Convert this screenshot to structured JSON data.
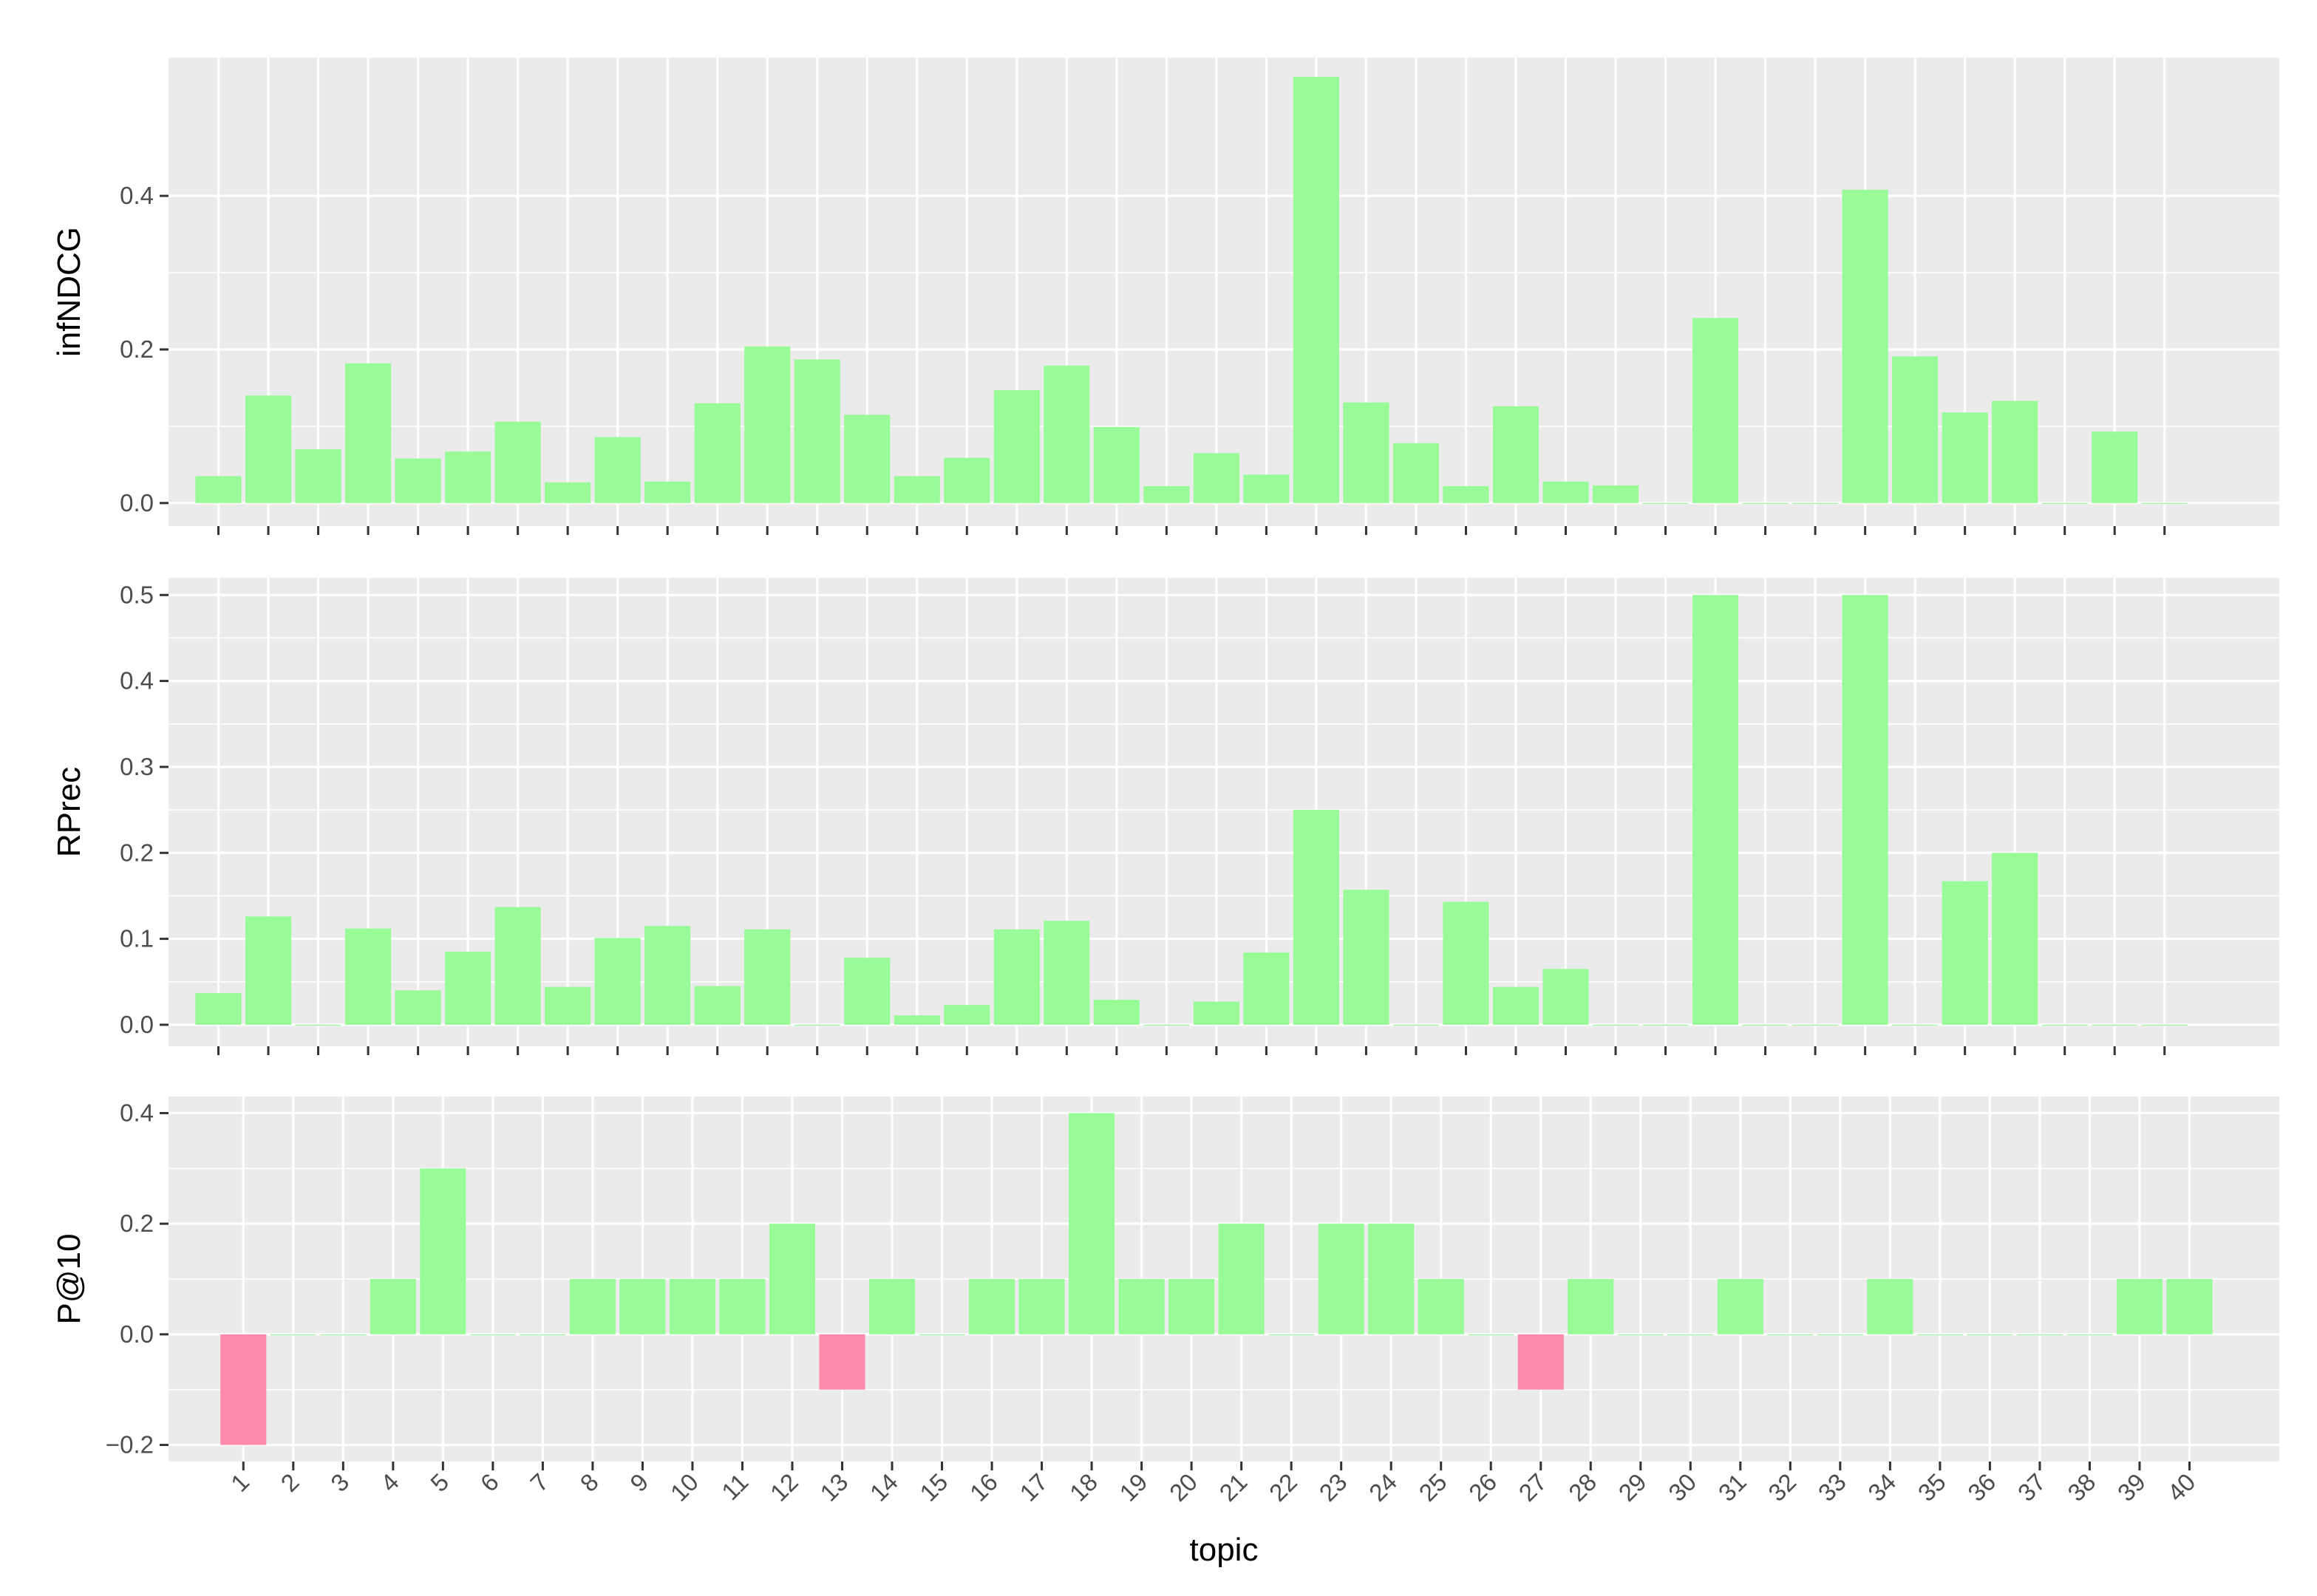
{
  "chart_data": [
    {
      "type": "bar",
      "ylabel": "infNDCG",
      "xlabel": "",
      "ylim": [
        -0.03,
        0.58
      ],
      "yticks": [
        0.0,
        0.2,
        0.4
      ],
      "ytick_labels": [
        "0.0",
        "0.2",
        "0.4"
      ],
      "x_offset": -0.5,
      "x": [
        1,
        2,
        3,
        4,
        5,
        6,
        7,
        8,
        9,
        10,
        11,
        12,
        13,
        14,
        15,
        16,
        17,
        18,
        19,
        20,
        21,
        22,
        23,
        24,
        25,
        26,
        27,
        28,
        29,
        30,
        31,
        32,
        33,
        34,
        35,
        36,
        37,
        38,
        39,
        40
      ],
      "values": [
        0.035,
        0.14,
        0.07,
        0.182,
        0.058,
        0.067,
        0.106,
        0.027,
        0.086,
        0.028,
        0.13,
        0.204,
        0.187,
        0.115,
        0.035,
        0.059,
        0.147,
        0.179,
        0.099,
        0.022,
        0.065,
        0.037,
        0.555,
        0.131,
        0.078,
        0.022,
        0.126,
        0.028,
        0.023,
        0,
        0.241,
        0,
        0,
        0.408,
        0.191,
        0.118,
        0.133,
        0,
        0.093,
        0
      ],
      "grid": true
    },
    {
      "type": "bar",
      "ylabel": "RPrec",
      "xlabel": "",
      "ylim": [
        -0.025,
        0.52
      ],
      "yticks": [
        0.0,
        0.1,
        0.2,
        0.3,
        0.4,
        0.5
      ],
      "ytick_labels": [
        "0.0",
        "0.1",
        "0.2",
        "0.3",
        "0.4",
        "0.5"
      ],
      "x_offset": -0.5,
      "x": [
        1,
        2,
        3,
        4,
        5,
        6,
        7,
        8,
        9,
        10,
        11,
        12,
        13,
        14,
        15,
        16,
        17,
        18,
        19,
        20,
        21,
        22,
        23,
        24,
        25,
        26,
        27,
        28,
        29,
        30,
        31,
        32,
        33,
        34,
        35,
        36,
        37,
        38,
        39,
        40
      ],
      "values": [
        0.037,
        0.126,
        0,
        0.112,
        0.04,
        0.085,
        0.137,
        0.044,
        0.101,
        0.115,
        0.045,
        0.111,
        0,
        0.078,
        0.011,
        0.023,
        0.111,
        0.121,
        0.029,
        0,
        0.027,
        0.084,
        0.25,
        0.157,
        0,
        0.143,
        0.044,
        0.065,
        0,
        0,
        0.5,
        0,
        0,
        0.5,
        0,
        0.167,
        0.2,
        0,
        0,
        0
      ],
      "grid": true
    },
    {
      "type": "bar",
      "ylabel": "P@10",
      "xlabel": "topic",
      "ylim": [
        -0.23,
        0.43
      ],
      "yticks": [
        -0.2,
        0.0,
        0.2,
        0.4
      ],
      "ytick_labels": [
        "−0.2",
        "0.0",
        "0.2",
        "0.4"
      ],
      "x_offset": 0,
      "categories": [
        "1",
        "2",
        "3",
        "4",
        "5",
        "6",
        "7",
        "8",
        "9",
        "10",
        "11",
        "12",
        "13",
        "14",
        "15",
        "16",
        "17",
        "18",
        "19",
        "20",
        "21",
        "22",
        "23",
        "24",
        "25",
        "26",
        "27",
        "28",
        "29",
        "30",
        "31",
        "32",
        "33",
        "34",
        "35",
        "36",
        "37",
        "38",
        "39",
        "40"
      ],
      "x": [
        1,
        2,
        3,
        4,
        5,
        6,
        7,
        8,
        9,
        10,
        11,
        12,
        13,
        14,
        15,
        16,
        17,
        18,
        19,
        20,
        21,
        22,
        23,
        24,
        25,
        26,
        27,
        28,
        29,
        30,
        31,
        32,
        33,
        34,
        35,
        36,
        37,
        38,
        39,
        40
      ],
      "values": [
        -0.2,
        0,
        0,
        0.1,
        0.3,
        0,
        0,
        0.1,
        0.1,
        0.1,
        0.1,
        0.2,
        -0.1,
        0.1,
        0,
        0.1,
        0.1,
        0.4,
        0.1,
        0.1,
        0.2,
        0,
        0.2,
        0.2,
        0.1,
        0,
        -0.1,
        0.1,
        0,
        0,
        0.1,
        0,
        0,
        0.1,
        0,
        0,
        0,
        0,
        0.1,
        0.1
      ],
      "grid": true
    }
  ],
  "colors": {
    "positive": "#98fb98",
    "negative": "#fe8aac",
    "panel_bg": "#ebebeb",
    "grid": "#ffffff",
    "tick": "#333333"
  }
}
